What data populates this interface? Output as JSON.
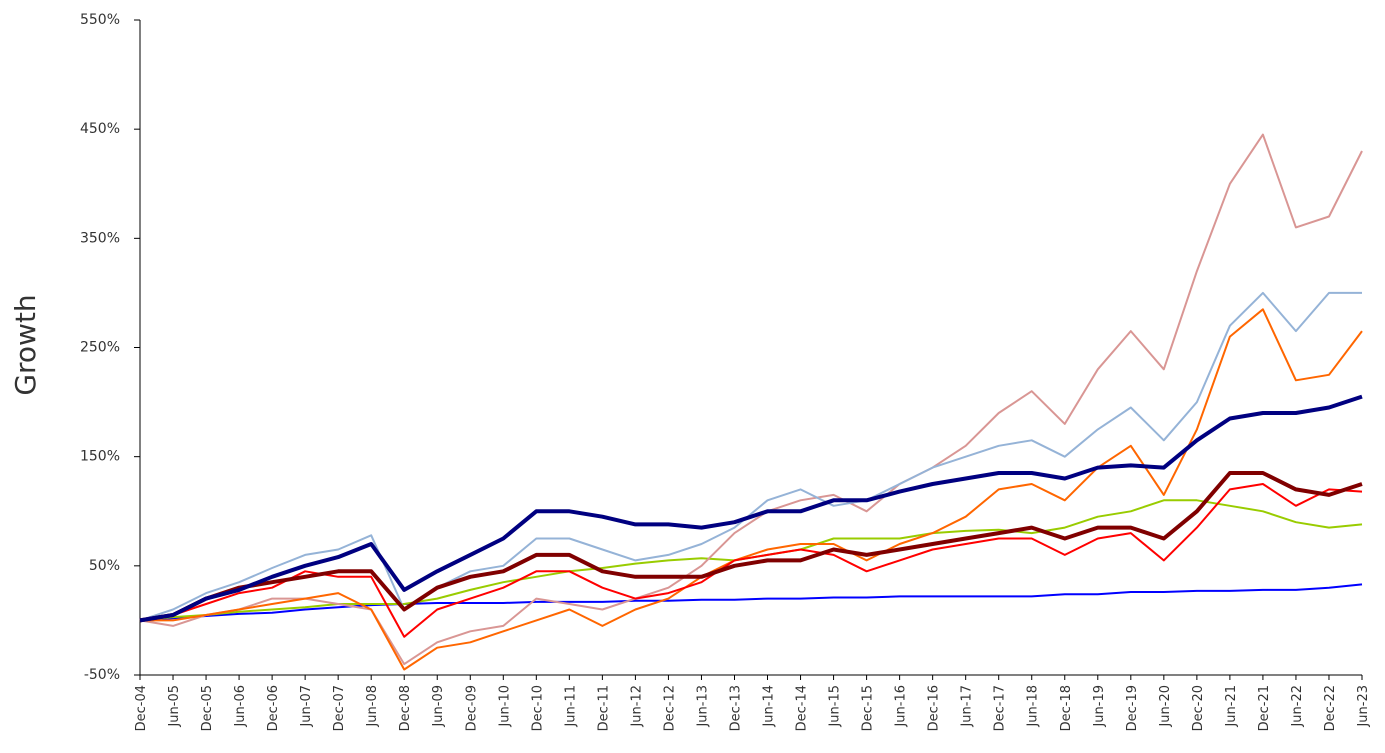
{
  "chart_data": {
    "type": "line",
    "y_label": "Growth",
    "categories": [
      "Dec-04",
      "Jun-05",
      "Dec-05",
      "Jun-06",
      "Dec-06",
      "Jun-07",
      "Dec-07",
      "Jun-08",
      "Dec-08",
      "Jun-09",
      "Dec-09",
      "Jun-10",
      "Dec-10",
      "Jun-11",
      "Dec-11",
      "Jun-12",
      "Dec-12",
      "Jun-13",
      "Dec-13",
      "Jun-14",
      "Dec-14",
      "Jun-15",
      "Dec-15",
      "Jun-16",
      "Dec-16",
      "Jun-17",
      "Dec-17",
      "Jun-18",
      "Dec-18",
      "Jun-19",
      "Dec-19",
      "Jun-20",
      "Dec-20",
      "Jun-21",
      "Dec-21",
      "Jun-22",
      "Dec-22",
      "Jun-23"
    ],
    "ylim": [
      -50,
      550
    ],
    "yticks": [
      {
        "value": -50,
        "label": "-50%"
      },
      {
        "value": 50,
        "label": "50%"
      },
      {
        "value": 150,
        "label": "150%"
      },
      {
        "value": 250,
        "label": "250%"
      },
      {
        "value": 350,
        "label": "350%"
      },
      {
        "value": 450,
        "label": "450%"
      },
      {
        "value": 550,
        "label": "550%"
      }
    ],
    "series": [
      {
        "color": "#0000ff",
        "values": [
          0,
          2,
          4,
          6,
          7,
          10,
          12,
          14,
          15,
          16,
          16,
          16,
          17,
          17,
          17,
          18,
          18,
          19,
          19,
          20,
          20,
          21,
          21,
          22,
          22,
          22,
          22,
          22,
          24,
          24,
          26,
          26,
          27,
          27,
          28,
          28,
          30,
          33
        ]
      },
      {
        "color": "#99cc00",
        "values": [
          0,
          3,
          5,
          8,
          10,
          12,
          15,
          15,
          15,
          20,
          28,
          35,
          40,
          45,
          48,
          52,
          55,
          57,
          55,
          60,
          65,
          75,
          75,
          75,
          80,
          82,
          83,
          80,
          85,
          95,
          100,
          110,
          110,
          105,
          100,
          90,
          85,
          88
        ]
      },
      {
        "color": "#d99694",
        "values": [
          0,
          -5,
          5,
          10,
          20,
          20,
          15,
          10,
          -40,
          -20,
          -10,
          -5,
          20,
          15,
          10,
          20,
          30,
          50,
          80,
          100,
          110,
          115,
          100,
          125,
          140,
          160,
          190,
          210,
          180,
          230,
          265,
          230,
          320,
          400,
          445,
          360,
          370,
          430
        ]
      },
      {
        "color": "#95b3d7",
        "values": [
          0,
          10,
          25,
          35,
          48,
          60,
          65,
          78,
          10,
          30,
          45,
          50,
          75,
          75,
          65,
          55,
          60,
          70,
          85,
          110,
          120,
          105,
          110,
          125,
          140,
          150,
          160,
          165,
          150,
          175,
          195,
          165,
          200,
          270,
          300,
          265,
          300,
          300
        ]
      },
      {
        "color": "#ff6600",
        "values": [
          0,
          0,
          5,
          10,
          15,
          20,
          25,
          10,
          -45,
          -25,
          -20,
          -10,
          0,
          10,
          -5,
          10,
          20,
          40,
          55,
          65,
          70,
          70,
          55,
          70,
          80,
          95,
          120,
          125,
          110,
          140,
          160,
          115,
          175,
          260,
          285,
          220,
          225,
          265
        ]
      },
      {
        "color": "#ff0000",
        "values": [
          0,
          5,
          15,
          25,
          30,
          45,
          40,
          40,
          -15,
          10,
          20,
          30,
          45,
          45,
          30,
          20,
          25,
          35,
          55,
          60,
          65,
          60,
          45,
          55,
          65,
          70,
          75,
          75,
          60,
          75,
          80,
          55,
          85,
          120,
          125,
          105,
          120,
          118
        ]
      },
      {
        "color": "#800000",
        "width": 4,
        "values": [
          0,
          5,
          20,
          30,
          35,
          40,
          45,
          45,
          10,
          30,
          40,
          45,
          60,
          60,
          45,
          40,
          40,
          40,
          50,
          55,
          55,
          65,
          60,
          65,
          70,
          75,
          80,
          85,
          75,
          85,
          85,
          75,
          100,
          135,
          135,
          120,
          115,
          125
        ]
      },
      {
        "color": "#000080",
        "width": 4,
        "values": [
          0,
          5,
          20,
          28,
          40,
          50,
          58,
          70,
          28,
          45,
          60,
          75,
          100,
          100,
          95,
          88,
          88,
          85,
          90,
          100,
          100,
          110,
          110,
          118,
          125,
          130,
          135,
          135,
          130,
          140,
          142,
          140,
          165,
          185,
          190,
          190,
          195,
          205
        ]
      }
    ]
  }
}
